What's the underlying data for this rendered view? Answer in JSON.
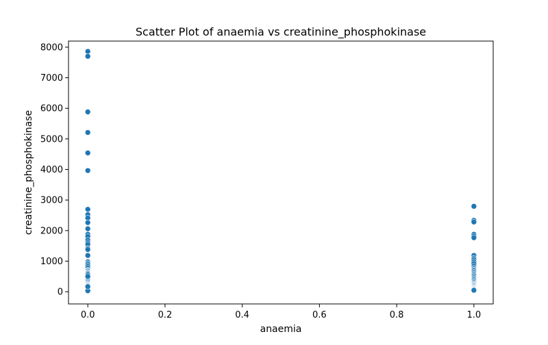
{
  "chart_data": {
    "type": "scatter",
    "title": "Scatter Plot of anaemia vs creatinine_phosphokinase",
    "xlabel": "anaemia",
    "ylabel": "creatinine_phosphokinase",
    "xlim": [
      -0.05,
      1.05
    ],
    "ylim": [
      -400,
      8200
    ],
    "xticks": [
      0.0,
      0.2,
      0.4,
      0.6,
      0.8,
      1.0
    ],
    "xtick_labels": [
      "0.0",
      "0.2",
      "0.4",
      "0.6",
      "0.8",
      "1.0"
    ],
    "yticks": [
      0,
      1000,
      2000,
      3000,
      4000,
      5000,
      6000,
      7000,
      8000
    ],
    "ytick_labels": [
      "0",
      "1000",
      "2000",
      "3000",
      "4000",
      "5000",
      "6000",
      "7000",
      "8000"
    ],
    "grid": false,
    "legend": "none",
    "marker_color": "#1f77b4",
    "series": [
      {
        "x": [
          0,
          0,
          0,
          0,
          0,
          0,
          0,
          0,
          0,
          0,
          0,
          0,
          0,
          0,
          0,
          0,
          0,
          0,
          0,
          0,
          0,
          0,
          0,
          0,
          0,
          0,
          0,
          0,
          0,
          0,
          0,
          0,
          0,
          0,
          0,
          0,
          0,
          0,
          0,
          0,
          0,
          0,
          0,
          0,
          0,
          0,
          0,
          0,
          0,
          0,
          0,
          0,
          0,
          0,
          0,
          0,
          0,
          0,
          0,
          0,
          1,
          1,
          1,
          1,
          1,
          1,
          1,
          1,
          1,
          1,
          1,
          1,
          1,
          1,
          1,
          1,
          1,
          1,
          1,
          1,
          1,
          1,
          1,
          1,
          1,
          1,
          1,
          1,
          1,
          1,
          1,
          1,
          1,
          1,
          1,
          1,
          1,
          1,
          1,
          1,
          1,
          1,
          1,
          1
        ],
        "y": [
          7861,
          7702,
          5882,
          5209,
          4540,
          3964,
          2695,
          2522,
          2413,
          2261,
          2060,
          1876,
          1808,
          1688,
          1610,
          1548,
          1419,
          1380,
          1202,
          1185,
          982,
          936,
          895,
          835,
          776,
          711,
          688,
          672,
          641,
          618,
          607,
          582,
          549,
          482,
          424,
          390,
          351,
          318,
          291,
          260,
          245,
          232,
          220,
          198,
          180,
          160,
          146,
          130,
          115,
          102,
          90,
          80,
          70,
          60,
          52,
          47,
          40,
          30,
          166,
          500,
          2794,
          2334,
          2281,
          1876,
          1820,
          1767,
          1185,
          1102,
          1051,
          981,
          916,
          840,
          776,
          748,
          711,
          688,
          647,
          618,
          582,
          547,
          520,
          481,
          451,
          420,
          391,
          358,
          320,
          298,
          269,
          249,
          231,
          212,
          193,
          173,
          157,
          140,
          125,
          109,
          94,
          82,
          72,
          62,
          52,
          48
        ]
      }
    ]
  }
}
